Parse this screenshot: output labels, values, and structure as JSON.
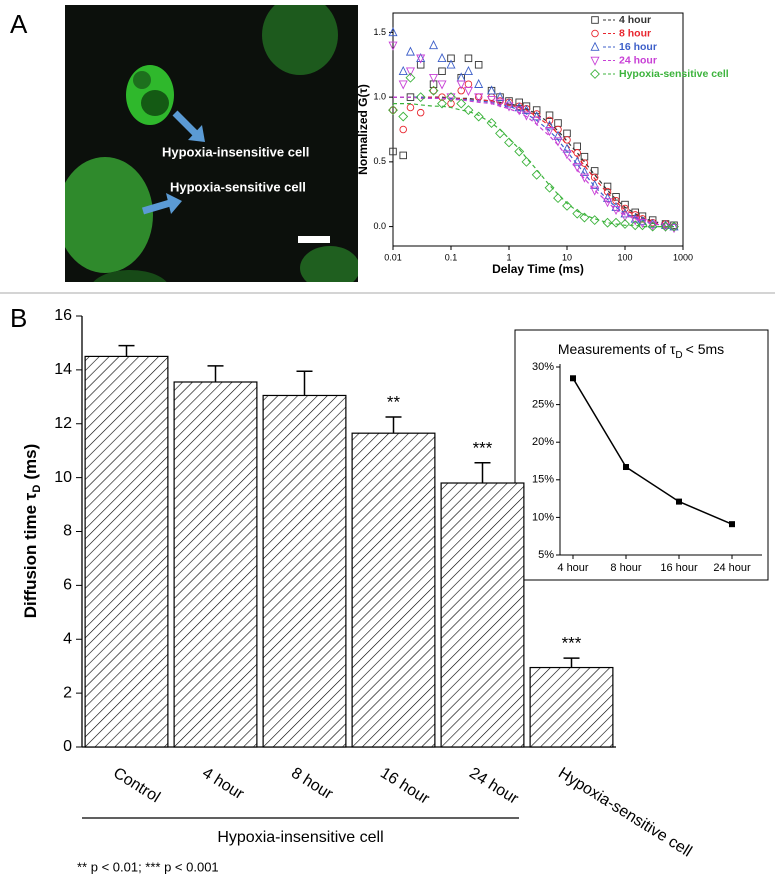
{
  "figure": {
    "panel_labels": [
      "A",
      "B"
    ],
    "image_labels": [
      "Hypoxia-insensitive cell",
      "Hypoxia-sensitive cell"
    ]
  },
  "chart_data": [
    {
      "type": "scatter",
      "xlabel": "Delay Time (ms)",
      "ylabel": "Normalized G(τ)",
      "xscale": "log",
      "xlim": [
        0.01,
        1000
      ],
      "ylim": [
        -0.15,
        1.65
      ],
      "xticks": [
        0.01,
        0.1,
        1,
        10,
        100,
        1000
      ],
      "yticks": [
        {
          "value": 0,
          "label": "0.0"
        },
        0.5,
        {
          "value": 1,
          "label": "1.0"
        },
        {
          "value": 1.5,
          "label": "1.5"
        }
      ],
      "legend": "top-right",
      "x": [
        0.01,
        0.015,
        0.02,
        0.03,
        0.05,
        0.07,
        0.1,
        0.15,
        0.2,
        0.3,
        0.5,
        0.7,
        1,
        1.5,
        2,
        3,
        5,
        7,
        10,
        15,
        20,
        30,
        50,
        70,
        100,
        150,
        200,
        300,
        500,
        700
      ],
      "series": [
        {
          "name": "4 hour",
          "color": "#333333",
          "marker": "square",
          "values": [
            0.58,
            0.55,
            1.0,
            1.25,
            1.1,
            1.2,
            1.3,
            1.15,
            1.3,
            1.25,
            1.05,
            1.0,
            0.97,
            0.96,
            0.93,
            0.9,
            0.86,
            0.8,
            0.72,
            0.62,
            0.54,
            0.43,
            0.31,
            0.23,
            0.17,
            0.11,
            0.08,
            0.05,
            0.02,
            0.01
          ],
          "fit": [
            1.0,
            1.0,
            1.0,
            1.0,
            1.0,
            1.0,
            0.99,
            0.99,
            0.99,
            0.98,
            0.97,
            0.96,
            0.95,
            0.93,
            0.91,
            0.87,
            0.8,
            0.74,
            0.66,
            0.57,
            0.5,
            0.4,
            0.28,
            0.21,
            0.15,
            0.1,
            0.07,
            0.04,
            0.02,
            0.01
          ]
        },
        {
          "name": "8 hour",
          "color": "#e8262f",
          "marker": "circle",
          "values": [
            0.9,
            0.75,
            0.92,
            0.88,
            1.05,
            1.0,
            0.95,
            1.05,
            1.1,
            1.0,
            1.0,
            0.97,
            0.96,
            0.93,
            0.91,
            0.87,
            0.82,
            0.75,
            0.67,
            0.57,
            0.49,
            0.38,
            0.27,
            0.2,
            0.14,
            0.09,
            0.06,
            0.03,
            0.02,
            0.0
          ],
          "fit": [
            1.0,
            1.0,
            1.0,
            1.0,
            1.0,
            0.99,
            0.99,
            0.99,
            0.98,
            0.98,
            0.97,
            0.95,
            0.94,
            0.92,
            0.9,
            0.85,
            0.78,
            0.72,
            0.63,
            0.54,
            0.47,
            0.37,
            0.26,
            0.19,
            0.13,
            0.09,
            0.06,
            0.03,
            0.01,
            0.0
          ]
        },
        {
          "name": "16 hour",
          "color": "#3d5fc9",
          "marker": "triangle-up",
          "values": [
            1.5,
            1.2,
            1.35,
            1.3,
            1.4,
            1.3,
            1.25,
            1.15,
            1.2,
            1.1,
            1.05,
            1.0,
            0.95,
            0.92,
            0.9,
            0.85,
            0.78,
            0.7,
            0.6,
            0.5,
            0.42,
            0.32,
            0.22,
            0.15,
            0.1,
            0.06,
            0.04,
            0.02,
            0.01,
            0.0
          ],
          "fit": [
            1.0,
            1.0,
            1.0,
            1.0,
            0.99,
            0.99,
            0.99,
            0.98,
            0.98,
            0.97,
            0.96,
            0.94,
            0.93,
            0.9,
            0.87,
            0.82,
            0.74,
            0.67,
            0.58,
            0.48,
            0.41,
            0.31,
            0.21,
            0.15,
            0.1,
            0.07,
            0.05,
            0.02,
            0.01,
            0.0
          ]
        },
        {
          "name": "24 hour",
          "color": "#c840d6",
          "marker": "triangle-down",
          "values": [
            1.4,
            1.1,
            1.2,
            1.3,
            1.15,
            1.1,
            1.0,
            1.1,
            1.05,
            1.0,
            0.98,
            0.96,
            0.93,
            0.9,
            0.86,
            0.82,
            0.74,
            0.66,
            0.56,
            0.46,
            0.38,
            0.28,
            0.19,
            0.13,
            0.08,
            0.05,
            0.03,
            0.01,
            0.0,
            -0.01
          ],
          "fit": [
            1.0,
            1.0,
            1.0,
            0.99,
            0.99,
            0.99,
            0.98,
            0.98,
            0.97,
            0.96,
            0.95,
            0.93,
            0.91,
            0.88,
            0.85,
            0.79,
            0.7,
            0.63,
            0.54,
            0.44,
            0.37,
            0.28,
            0.19,
            0.13,
            0.09,
            0.06,
            0.04,
            0.02,
            0.01,
            0.0
          ]
        },
        {
          "name": "Hypoxia-sensitive cell",
          "color": "#3cb33c",
          "marker": "diamond",
          "values": [
            0.9,
            0.85,
            1.15,
            1.0,
            1.05,
            0.95,
            1.0,
            0.95,
            0.9,
            0.85,
            0.8,
            0.72,
            0.65,
            0.58,
            0.5,
            0.4,
            0.3,
            0.22,
            0.16,
            0.1,
            0.07,
            0.05,
            0.03,
            0.03,
            0.02,
            0.01,
            0.01,
            0.0,
            0.0,
            0.0
          ],
          "fit": [
            0.95,
            0.95,
            0.95,
            0.94,
            0.93,
            0.93,
            0.92,
            0.9,
            0.89,
            0.86,
            0.8,
            0.75,
            0.68,
            0.6,
            0.53,
            0.44,
            0.32,
            0.25,
            0.18,
            0.12,
            0.09,
            0.06,
            0.03,
            0.02,
            0.01,
            0.01,
            0.0,
            0.0,
            0.0,
            0.0
          ]
        }
      ]
    },
    {
      "type": "bar",
      "ylabel": "Diffusion time τ",
      "ylabel_subscript": "D",
      "ylabel_suffix": "(ms)",
      "categories": [
        "Control",
        "4 hour",
        "8 hour",
        "16 hour",
        "24 hour",
        "Hypoxia-sensitive cell"
      ],
      "values": [
        14.5,
        13.55,
        13.05,
        11.65,
        9.8,
        2.95
      ],
      "errors": [
        0.4,
        0.6,
        0.9,
        0.6,
        0.75,
        0.35
      ],
      "significance": [
        null,
        null,
        null,
        "**",
        "***",
        "***"
      ],
      "group_label": "Hypoxia-insensitive cell",
      "footnote": "** p < 0.01; *** p < 0.001",
      "ylim": [
        0,
        16
      ],
      "yticks": [
        0,
        2,
        4,
        6,
        8,
        10,
        12,
        14,
        16
      ],
      "color": "#000000"
    },
    {
      "type": "line",
      "title": "Measurements of τ",
      "title_subscript": "D",
      "title_suffix": "< 5ms",
      "categories": [
        "4 hour",
        "8 hour",
        "16 hour",
        "24 hour"
      ],
      "values": [
        28.5,
        16.7,
        12.1,
        9.1
      ],
      "color": "#000000",
      "ylim": [
        5,
        30
      ],
      "yticks": [
        {
          "value": 5,
          "label": "5%"
        },
        {
          "value": 10,
          "label": "10%"
        },
        {
          "value": 15,
          "label": "15%"
        },
        {
          "value": 20,
          "label": "20%"
        },
        {
          "value": 25,
          "label": "25%"
        },
        {
          "value": 30,
          "label": "30%"
        }
      ]
    }
  ]
}
